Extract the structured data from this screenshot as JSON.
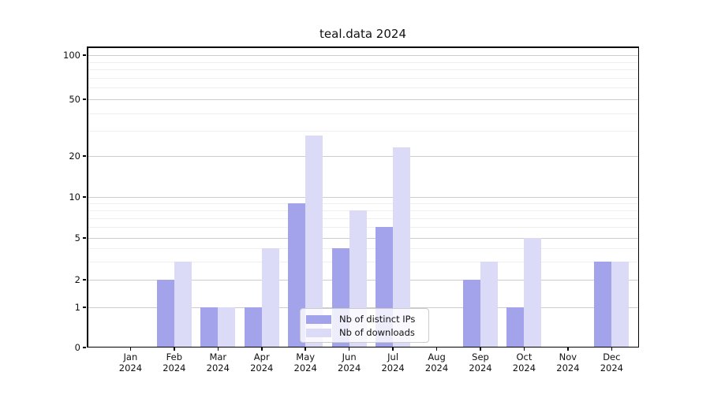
{
  "title": "teal.data 2024",
  "chart_data": {
    "type": "bar",
    "title": "teal.data 2024",
    "categories": [
      {
        "month": "Jan",
        "year": "2024"
      },
      {
        "month": "Feb",
        "year": "2024"
      },
      {
        "month": "Mar",
        "year": "2024"
      },
      {
        "month": "Apr",
        "year": "2024"
      },
      {
        "month": "May",
        "year": "2024"
      },
      {
        "month": "Jun",
        "year": "2024"
      },
      {
        "month": "Jul",
        "year": "2024"
      },
      {
        "month": "Aug",
        "year": "2024"
      },
      {
        "month": "Sep",
        "year": "2024"
      },
      {
        "month": "Oct",
        "year": "2024"
      },
      {
        "month": "Nov",
        "year": "2024"
      },
      {
        "month": "Dec",
        "year": "2024"
      }
    ],
    "series": [
      {
        "name": "Nb of distinct IPs",
        "color": "#a3a3ec",
        "values": [
          0,
          2,
          1,
          1,
          9,
          4,
          6,
          0,
          2,
          1,
          0,
          3
        ]
      },
      {
        "name": "Nb of downloads",
        "color": "#dbdbf8",
        "values": [
          0,
          3,
          1,
          4,
          28,
          8,
          23,
          0,
          3,
          5,
          0,
          3
        ]
      }
    ],
    "yscale": "symlog",
    "yticks": [
      0,
      1,
      2,
      5,
      10,
      20,
      50,
      100
    ],
    "minor_yticks": [
      3,
      4,
      6,
      7,
      8,
      9,
      30,
      40,
      60,
      70,
      80,
      90
    ],
    "ylim": [
      0,
      115
    ],
    "xlabel": "",
    "ylabel": "",
    "grid": true,
    "legend_position": "inside lower center"
  },
  "colors": {
    "distinct_ips": "#a3a3ec",
    "downloads": "#dbdbf8",
    "major_grid": "#cccccc",
    "minor_grid": "#efefef"
  }
}
